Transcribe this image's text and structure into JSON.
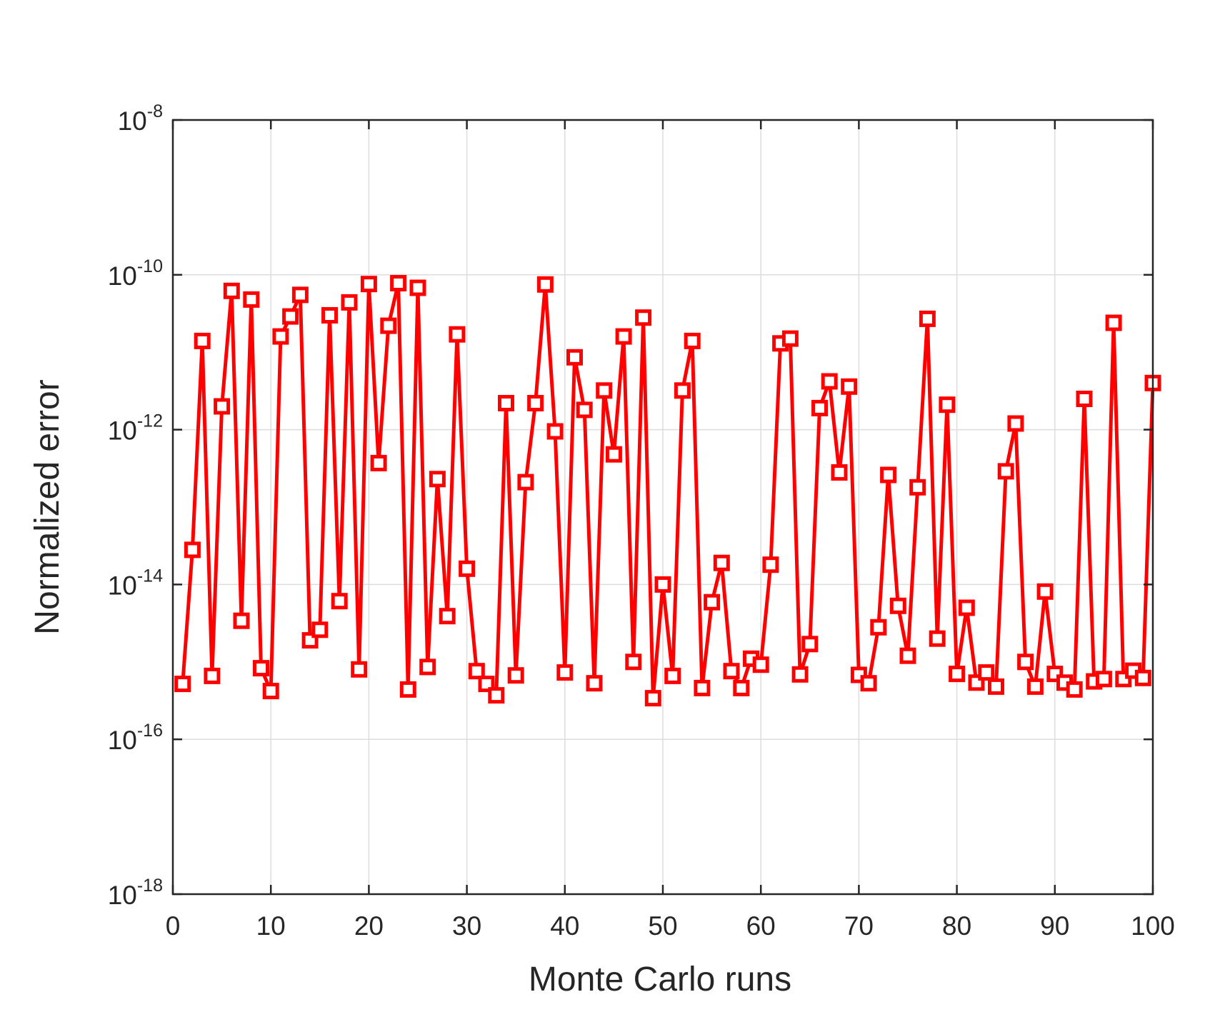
{
  "chart_data": {
    "type": "line",
    "title": "",
    "xlabel": "Monte Carlo runs",
    "ylabel": "Normalized error",
    "xlim": [
      0,
      100
    ],
    "ylim": [
      1e-18,
      1e-08
    ],
    "yscale": "log",
    "grid": true,
    "legend": "none",
    "xticks": [
      0,
      10,
      20,
      30,
      40,
      50,
      60,
      70,
      80,
      90,
      100
    ],
    "xtick_labels": [
      "0",
      "10",
      "20",
      "30",
      "40",
      "50",
      "60",
      "70",
      "80",
      "90",
      "100"
    ],
    "yticks": [
      1e-18,
      1e-16,
      1e-14,
      1e-12,
      1e-10,
      1e-08
    ],
    "ytick_labels": [
      {
        "base": "10",
        "exp": "-18"
      },
      {
        "base": "10",
        "exp": "-16"
      },
      {
        "base": "10",
        "exp": "-14"
      },
      {
        "base": "10",
        "exp": "-12"
      },
      {
        "base": "10",
        "exp": "-10"
      },
      {
        "base": "10",
        "exp": "-8"
      }
    ],
    "series": [
      {
        "color": "#ff0000",
        "marker": "square",
        "x": [
          1,
          2,
          3,
          4,
          5,
          6,
          7,
          8,
          9,
          10,
          11,
          12,
          13,
          14,
          15,
          16,
          17,
          18,
          19,
          20,
          21,
          22,
          23,
          24,
          25,
          26,
          27,
          28,
          29,
          30,
          31,
          32,
          33,
          34,
          35,
          36,
          37,
          38,
          39,
          40,
          41,
          42,
          43,
          44,
          45,
          46,
          47,
          48,
          49,
          50,
          51,
          52,
          53,
          54,
          55,
          56,
          57,
          58,
          59,
          60,
          61,
          62,
          63,
          64,
          65,
          66,
          67,
          68,
          69,
          70,
          71,
          72,
          73,
          74,
          75,
          76,
          77,
          78,
          79,
          80,
          81,
          82,
          83,
          84,
          85,
          86,
          87,
          88,
          89,
          90,
          91,
          92,
          93,
          94,
          95,
          96,
          97,
          98,
          99,
          100
        ],
        "values": [
          5.2e-16,
          2.8e-14,
          1.4e-11,
          6.6e-16,
          2e-12,
          6.2e-11,
          3.4e-15,
          4.8e-11,
          8.3e-16,
          4.2e-16,
          1.6e-11,
          2.9e-11,
          5.5e-11,
          1.9e-15,
          2.6e-15,
          3e-11,
          6.1e-15,
          4.4e-11,
          8e-16,
          7.6e-11,
          3.7e-13,
          2.2e-11,
          7.8e-11,
          4.4e-16,
          6.8e-11,
          8.6e-16,
          2.3e-13,
          3.9e-15,
          1.7e-11,
          1.6e-14,
          7.6e-16,
          5.2e-16,
          3.7e-16,
          2.2e-12,
          6.7e-16,
          2.1e-13,
          2.2e-12,
          7.5e-11,
          9.5e-13,
          7.3e-16,
          8.6e-12,
          1.8e-12,
          5.3e-16,
          3.2e-12,
          4.8e-13,
          1.6e-11,
          1e-15,
          2.8e-11,
          3.4e-16,
          1e-14,
          6.6e-16,
          3.2e-12,
          1.4e-11,
          4.6e-16,
          5.9e-15,
          1.9e-14,
          7.6e-16,
          4.6e-16,
          1.1e-15,
          9.2e-16,
          1.8e-14,
          1.3e-11,
          1.5e-11,
          6.9e-16,
          1.7e-15,
          1.9e-12,
          4.2e-12,
          2.8e-13,
          3.6e-12,
          6.8e-16,
          5.3e-16,
          2.8e-15,
          2.6e-13,
          5.3e-15,
          1.2e-15,
          1.8e-13,
          2.7e-11,
          2e-15,
          2.1e-12,
          7e-16,
          5e-15,
          5.4e-16,
          7.3e-16,
          4.8e-16,
          2.9e-13,
          1.2e-12,
          1e-15,
          4.8e-16,
          8.1e-15,
          7e-16,
          5.4e-16,
          4.4e-16,
          2.5e-12,
          5.6e-16,
          6e-16,
          2.4e-11,
          6e-16,
          7.7e-16,
          6.2e-16,
          4e-12
        ]
      }
    ]
  }
}
